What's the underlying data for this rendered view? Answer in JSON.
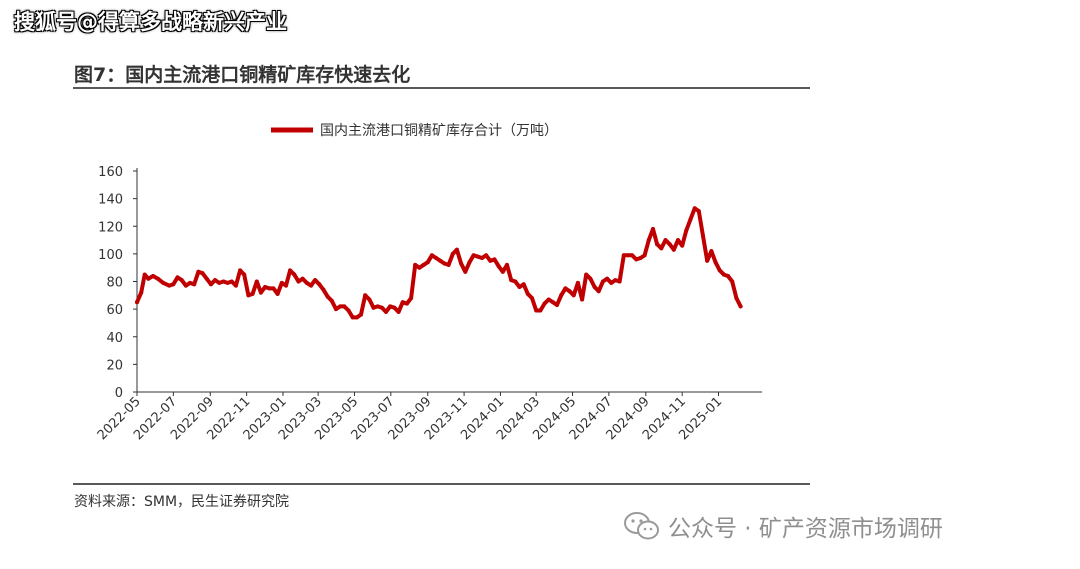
{
  "watermark_top": "搜狐号@得算多战略新兴产业",
  "figure_title": "图7：国内主流港口铜精矿库存快速去化",
  "source_note": "资料来源：SMM，民生证券研究院",
  "watermark_bottom": "公众号 · 矿产资源市场调研",
  "colors": {
    "series": "#c00000",
    "axis": "#333333"
  },
  "chart_data": {
    "type": "line",
    "title": "",
    "xlabel": "",
    "ylabel": "",
    "ylim": [
      0,
      160
    ],
    "yticks": [
      0,
      20,
      40,
      60,
      80,
      100,
      120,
      140,
      160
    ],
    "xlim": [
      "2022-05-01",
      "2025-03-15"
    ],
    "xticks": [
      "2022-05",
      "2022-07",
      "2022-09",
      "2022-11",
      "2023-01",
      "2023-03",
      "2023-05",
      "2023-07",
      "2023-09",
      "2023-11",
      "2024-01",
      "2024-03",
      "2024-05",
      "2024-07",
      "2024-09",
      "2024-11",
      "2025-01"
    ],
    "legend_position": "top-center",
    "grid": false,
    "series": [
      {
        "name": "国内主流港口铜精矿库存合计（万吨）",
        "color": "#c00000",
        "points": [
          [
            "2022-05-01",
            65
          ],
          [
            "2022-05-08",
            72
          ],
          [
            "2022-05-14",
            85
          ],
          [
            "2022-05-20",
            82
          ],
          [
            "2022-05-28",
            84
          ],
          [
            "2022-06-05",
            82
          ],
          [
            "2022-06-14",
            79
          ],
          [
            "2022-06-24",
            77
          ],
          [
            "2022-07-01",
            78
          ],
          [
            "2022-07-08",
            83
          ],
          [
            "2022-07-15",
            81
          ],
          [
            "2022-07-22",
            77
          ],
          [
            "2022-07-29",
            79
          ],
          [
            "2022-08-05",
            78
          ],
          [
            "2022-08-12",
            87
          ],
          [
            "2022-08-19",
            86
          ],
          [
            "2022-08-26",
            82
          ],
          [
            "2022-09-02",
            78
          ],
          [
            "2022-09-09",
            81
          ],
          [
            "2022-09-16",
            79
          ],
          [
            "2022-09-23",
            80
          ],
          [
            "2022-09-30",
            79
          ],
          [
            "2022-10-07",
            80
          ],
          [
            "2022-10-14",
            77
          ],
          [
            "2022-10-21",
            88
          ],
          [
            "2022-10-28",
            85
          ],
          [
            "2022-11-04",
            70
          ],
          [
            "2022-11-11",
            71
          ],
          [
            "2022-11-18",
            80
          ],
          [
            "2022-11-25",
            72
          ],
          [
            "2022-12-02",
            76
          ],
          [
            "2022-12-09",
            75
          ],
          [
            "2022-12-16",
            75
          ],
          [
            "2022-12-23",
            71
          ],
          [
            "2022-12-30",
            79
          ],
          [
            "2023-01-06",
            77
          ],
          [
            "2023-01-13",
            88
          ],
          [
            "2023-01-20",
            85
          ],
          [
            "2023-01-27",
            80
          ],
          [
            "2023-02-03",
            82
          ],
          [
            "2023-02-10",
            79
          ],
          [
            "2023-02-17",
            77
          ],
          [
            "2023-02-24",
            81
          ],
          [
            "2023-03-03",
            78
          ],
          [
            "2023-03-10",
            74
          ],
          [
            "2023-03-17",
            69
          ],
          [
            "2023-03-24",
            66
          ],
          [
            "2023-03-31",
            60
          ],
          [
            "2023-04-07",
            62
          ],
          [
            "2023-04-14",
            62
          ],
          [
            "2023-04-21",
            59
          ],
          [
            "2023-04-28",
            54
          ],
          [
            "2023-05-05",
            54
          ],
          [
            "2023-05-12",
            56
          ],
          [
            "2023-05-19",
            70
          ],
          [
            "2023-05-26",
            67
          ],
          [
            "2023-06-02",
            61
          ],
          [
            "2023-06-09",
            62
          ],
          [
            "2023-06-16",
            61
          ],
          [
            "2023-06-23",
            58
          ],
          [
            "2023-06-30",
            62
          ],
          [
            "2023-07-07",
            61
          ],
          [
            "2023-07-14",
            58
          ],
          [
            "2023-07-21",
            65
          ],
          [
            "2023-07-28",
            64
          ],
          [
            "2023-08-04",
            68
          ],
          [
            "2023-08-11",
            92
          ],
          [
            "2023-08-18",
            90
          ],
          [
            "2023-08-25",
            92
          ],
          [
            "2023-09-01",
            94
          ],
          [
            "2023-09-08",
            99
          ],
          [
            "2023-09-15",
            97
          ],
          [
            "2023-09-22",
            95
          ],
          [
            "2023-09-29",
            93
          ],
          [
            "2023-10-06",
            92
          ],
          [
            "2023-10-13",
            100
          ],
          [
            "2023-10-20",
            103
          ],
          [
            "2023-10-27",
            93
          ],
          [
            "2023-11-03",
            87
          ],
          [
            "2023-11-10",
            94
          ],
          [
            "2023-11-17",
            99
          ],
          [
            "2023-11-24",
            98
          ],
          [
            "2023-12-01",
            97
          ],
          [
            "2023-12-08",
            99
          ],
          [
            "2023-12-15",
            95
          ],
          [
            "2023-12-22",
            96
          ],
          [
            "2023-12-29",
            91
          ],
          [
            "2024-01-05",
            87
          ],
          [
            "2024-01-12",
            92
          ],
          [
            "2024-01-19",
            81
          ],
          [
            "2024-01-26",
            80
          ],
          [
            "2024-02-02",
            76
          ],
          [
            "2024-02-09",
            78
          ],
          [
            "2024-02-16",
            71
          ],
          [
            "2024-02-23",
            68
          ],
          [
            "2024-03-01",
            59
          ],
          [
            "2024-03-08",
            59
          ],
          [
            "2024-03-15",
            64
          ],
          [
            "2024-03-22",
            67
          ],
          [
            "2024-03-29",
            65
          ],
          [
            "2024-04-05",
            63
          ],
          [
            "2024-04-12",
            70
          ],
          [
            "2024-04-19",
            75
          ],
          [
            "2024-04-26",
            73
          ],
          [
            "2024-05-03",
            70
          ],
          [
            "2024-05-10",
            79
          ],
          [
            "2024-05-17",
            67
          ],
          [
            "2024-05-24",
            85
          ],
          [
            "2024-05-31",
            82
          ],
          [
            "2024-06-07",
            76
          ],
          [
            "2024-06-14",
            73
          ],
          [
            "2024-06-21",
            80
          ],
          [
            "2024-06-28",
            82
          ],
          [
            "2024-07-05",
            79
          ],
          [
            "2024-07-12",
            81
          ],
          [
            "2024-07-19",
            80
          ],
          [
            "2024-07-26",
            99
          ],
          [
            "2024-08-02",
            99
          ],
          [
            "2024-08-09",
            99
          ],
          [
            "2024-08-16",
            96
          ],
          [
            "2024-08-23",
            97
          ],
          [
            "2024-08-30",
            99
          ],
          [
            "2024-09-06",
            110
          ],
          [
            "2024-09-13",
            118
          ],
          [
            "2024-09-20",
            107
          ],
          [
            "2024-09-27",
            104
          ],
          [
            "2024-10-04",
            110
          ],
          [
            "2024-10-11",
            107
          ],
          [
            "2024-10-18",
            103
          ],
          [
            "2024-10-25",
            110
          ],
          [
            "2024-11-01",
            106
          ],
          [
            "2024-11-08",
            117
          ],
          [
            "2024-11-15",
            125
          ],
          [
            "2024-11-22",
            133
          ],
          [
            "2024-11-29",
            131
          ],
          [
            "2024-12-06",
            113
          ],
          [
            "2024-12-13",
            95
          ],
          [
            "2024-12-20",
            102
          ],
          [
            "2024-12-27",
            94
          ],
          [
            "2025-01-03",
            88
          ],
          [
            "2025-01-10",
            85
          ],
          [
            "2025-01-17",
            84
          ],
          [
            "2025-01-24",
            80
          ],
          [
            "2025-01-31",
            68
          ],
          [
            "2025-02-07",
            62
          ]
        ]
      }
    ]
  }
}
